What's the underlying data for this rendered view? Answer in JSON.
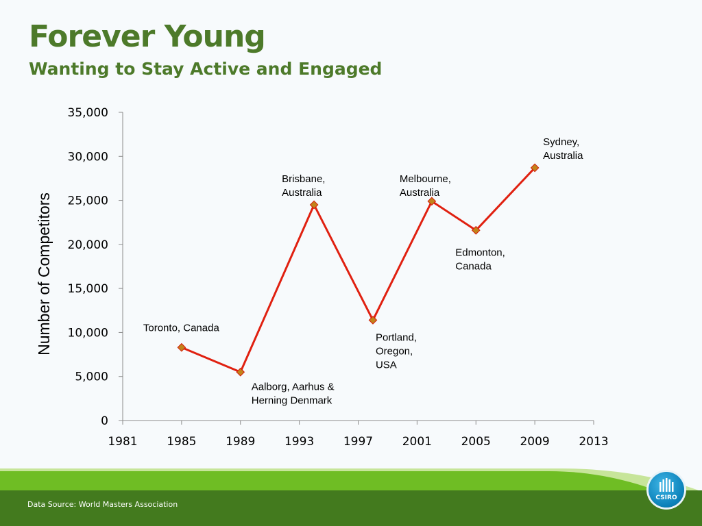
{
  "slide": {
    "title": "Forever Young",
    "subtitle": "Wanting to Stay Active and Engaged",
    "source": "Data Source: World Masters Association",
    "logo_text": "CSIRO"
  },
  "colors": {
    "title": "#4d7a2a",
    "line": "#e02010",
    "marker": "#c2831a",
    "green_band": "#6fbd24",
    "dark_band": "#437a1e"
  },
  "chart_data": {
    "type": "line",
    "title": "",
    "xlabel": "",
    "ylabel": "Number of Competitors",
    "xlim": [
      1981,
      2013
    ],
    "ylim": [
      0,
      35000
    ],
    "xticks": [
      1981,
      1985,
      1989,
      1993,
      1997,
      2001,
      2005,
      2009,
      2013
    ],
    "yticks": [
      0,
      5000,
      10000,
      15000,
      20000,
      25000,
      30000,
      35000
    ],
    "ytick_labels": [
      "0",
      "5,000",
      "10,000",
      "15,000",
      "20,000",
      "25,000",
      "30,000",
      "35,000"
    ],
    "grid": false,
    "series": [
      {
        "points": [
          {
            "x": 1985,
            "y": 8300,
            "label": [
              "Toronto, Canada"
            ]
          },
          {
            "x": 1989,
            "y": 5500,
            "label": [
              "Aalborg, Aarhus &",
              "Herning Denmark"
            ]
          },
          {
            "x": 1994,
            "y": 24500,
            "label": [
              "Brisbane,",
              "Australia"
            ]
          },
          {
            "x": 1998,
            "y": 11400,
            "label": [
              "Portland,",
              "Oregon,",
              "USA"
            ]
          },
          {
            "x": 2002,
            "y": 24900,
            "label": [
              "Melbourne,",
              "Australia"
            ]
          },
          {
            "x": 2005,
            "y": 21600,
            "label": [
              "Edmonton,",
              "Canada"
            ]
          },
          {
            "x": 2009,
            "y": 28700,
            "label": [
              "Sydney,",
              "Australia"
            ]
          }
        ]
      }
    ]
  }
}
